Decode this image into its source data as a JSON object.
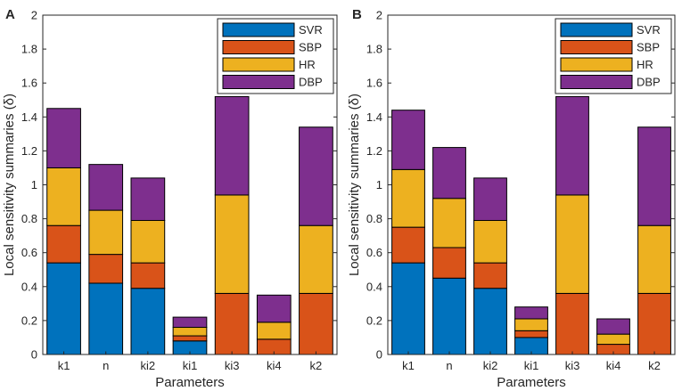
{
  "chart_data": [
    {
      "panel_label": "A",
      "type": "bar",
      "stacked": true,
      "categories": [
        "k1",
        "n",
        "ki2",
        "ki1",
        "ki3",
        "ki4",
        "k2"
      ],
      "series": [
        {
          "name": "SVR",
          "color": "#0072BD",
          "values": [
            0.54,
            0.42,
            0.39,
            0.08,
            0.0,
            0.0,
            0.0
          ]
        },
        {
          "name": "SBP",
          "color": "#D95319",
          "values": [
            0.22,
            0.17,
            0.15,
            0.03,
            0.36,
            0.09,
            0.36
          ]
        },
        {
          "name": "HR",
          "color": "#EDB120",
          "values": [
            0.34,
            0.26,
            0.25,
            0.05,
            0.58,
            0.1,
            0.4
          ]
        },
        {
          "name": "DBP",
          "color": "#7E2F8E",
          "values": [
            0.35,
            0.27,
            0.25,
            0.06,
            0.58,
            0.16,
            0.58
          ]
        }
      ],
      "xlabel": "Parameters",
      "ylabel": "Local sensitivity summaries (δ)",
      "ylim": [
        0,
        2
      ],
      "yticks": [
        "0",
        "0.2",
        "0.4",
        "0.6",
        "0.8",
        "1",
        "1.2",
        "1.4",
        "1.6",
        "1.8",
        "2"
      ],
      "legend_position": "top-right",
      "grid": false
    },
    {
      "panel_label": "B",
      "type": "bar",
      "stacked": true,
      "categories": [
        "k1",
        "n",
        "ki2",
        "ki1",
        "ki3",
        "ki4",
        "k2"
      ],
      "series": [
        {
          "name": "SVR",
          "color": "#0072BD",
          "values": [
            0.54,
            0.45,
            0.39,
            0.1,
            0.0,
            0.0,
            0.0
          ]
        },
        {
          "name": "SBP",
          "color": "#D95319",
          "values": [
            0.21,
            0.18,
            0.15,
            0.04,
            0.36,
            0.06,
            0.36
          ]
        },
        {
          "name": "HR",
          "color": "#EDB120",
          "values": [
            0.34,
            0.29,
            0.25,
            0.07,
            0.58,
            0.06,
            0.4
          ]
        },
        {
          "name": "DBP",
          "color": "#7E2F8E",
          "values": [
            0.35,
            0.3,
            0.25,
            0.07,
            0.58,
            0.09,
            0.58
          ]
        }
      ],
      "xlabel": "Parameters",
      "ylabel": "Local sensitivity summaries (δ)",
      "ylim": [
        0,
        2
      ],
      "yticks": [
        "0",
        "0.2",
        "0.4",
        "0.6",
        "0.8",
        "1",
        "1.2",
        "1.4",
        "1.6",
        "1.8",
        "2"
      ],
      "legend_position": "top-right",
      "grid": false
    }
  ]
}
